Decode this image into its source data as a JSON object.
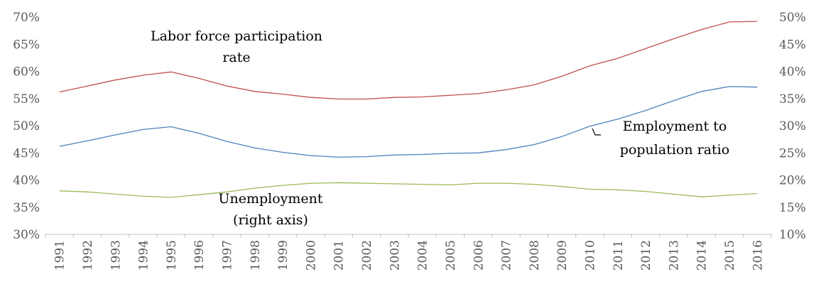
{
  "chart_data": {
    "type": "line",
    "x": [
      1991,
      1992,
      1993,
      1994,
      1995,
      1996,
      1997,
      1998,
      1999,
      2000,
      2001,
      2002,
      2003,
      2004,
      2005,
      2006,
      2007,
      2008,
      2009,
      2010,
      2011,
      2012,
      2013,
      2014,
      2015,
      2016
    ],
    "x_tick_labels": [
      "1991",
      "1992",
      "1993",
      "1994",
      "1995",
      "1996",
      "1997",
      "1998",
      "1999",
      "2000",
      "2001",
      "2002",
      "2003",
      "2004",
      "2005",
      "2006",
      "2007",
      "2008",
      "2009",
      "2010",
      "2011",
      "2012",
      "2013",
      "2014",
      "2015",
      "2016"
    ],
    "left_axis": {
      "ylim": [
        30,
        70
      ],
      "tick_labels": [
        "30%",
        "35%",
        "40%",
        "45%",
        "50%",
        "55%",
        "60%",
        "65%",
        "70%"
      ]
    },
    "right_axis": {
      "ylim": [
        10,
        50
      ],
      "tick_labels": [
        "10%",
        "15%",
        "20%",
        "25%",
        "30%",
        "35%",
        "40%",
        "45%",
        "50%"
      ]
    },
    "grid": false,
    "legend": "none",
    "series": [
      {
        "name": "Labor force participation rate",
        "axis": "left",
        "color": "#c0504d",
        "values": [
          56.2,
          57.3,
          58.4,
          59.3,
          59.9,
          58.7,
          57.3,
          56.3,
          55.8,
          55.2,
          54.9,
          54.9,
          55.2,
          55.3,
          55.6,
          55.9,
          56.6,
          57.5,
          59.1,
          61.0,
          62.4,
          64.2,
          66.0,
          67.7,
          69.1,
          69.2
        ]
      },
      {
        "name": "Employment to population ratio",
        "axis": "left",
        "color": "#4f81bd",
        "values": [
          46.2,
          47.2,
          48.3,
          49.3,
          49.8,
          48.6,
          47.1,
          45.9,
          45.1,
          44.5,
          44.2,
          44.3,
          44.6,
          44.7,
          44.9,
          45.0,
          45.6,
          46.5,
          48.0,
          49.9,
          51.2,
          52.8,
          54.6,
          56.3,
          57.2,
          57.1
        ]
      },
      {
        "name": "Unemployment (right axis)",
        "axis": "right",
        "color": "#9bbb59",
        "values": [
          18.0,
          17.8,
          17.4,
          17.0,
          16.8,
          17.3,
          17.8,
          18.5,
          19.0,
          19.4,
          19.5,
          19.4,
          19.3,
          19.2,
          19.1,
          19.4,
          19.4,
          19.2,
          18.8,
          18.3,
          18.2,
          17.9,
          17.4,
          16.9,
          17.2,
          17.5
        ]
      }
    ],
    "annotations": [
      {
        "lines": [
          "Labor force participation",
          "rate"
        ]
      },
      {
        "lines": [
          "Employment to",
          "population ratio"
        ]
      },
      {
        "lines": [
          "Unemployment",
          "(right axis)"
        ]
      }
    ]
  }
}
